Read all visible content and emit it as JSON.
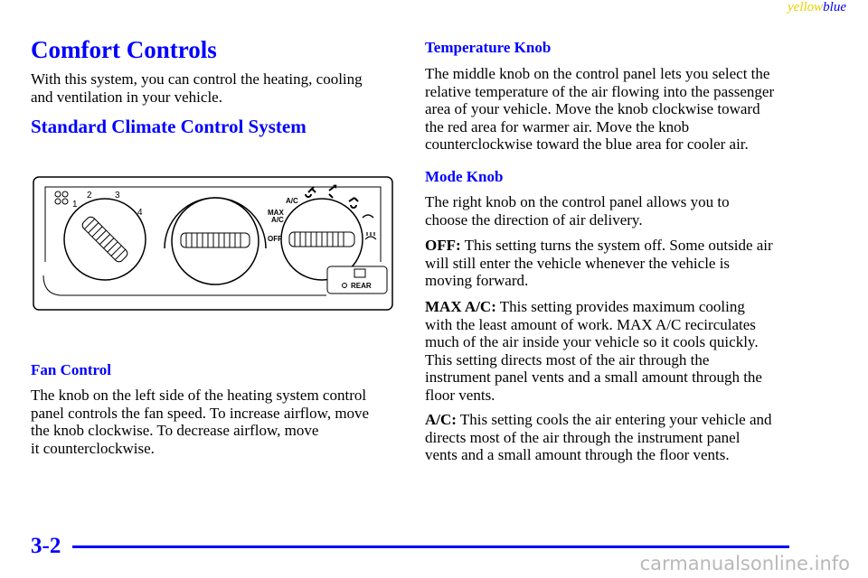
{
  "header": {
    "yellow": "yellow",
    "blue": "blue"
  },
  "left": {
    "title": "Comfort Controls",
    "intro": [
      "With this system, you can control the heating, cooling",
      "and ventilation in your vehicle."
    ],
    "subtitle": "Standard Climate Control System",
    "figure": {
      "fan_labels": [
        "1",
        "2",
        "3",
        "4"
      ],
      "ac": "A/C",
      "max": "MAX",
      "max_ac": "A/C",
      "off": "OFF",
      "rear": "REAR"
    },
    "fan_heading": "Fan Control",
    "fan_text": [
      "The knob on the left side of the heating system control",
      "panel controls the fan speed. To increase airflow, move",
      "the knob clockwise. To decrease airflow, move",
      "it counterclockwise."
    ]
  },
  "right": {
    "temp_heading": "Temperature Knob",
    "temp_text": [
      "The middle knob on the control panel lets you select the",
      "relative temperature of the air flowing into the passenger",
      "area of your vehicle. Move the knob clockwise toward",
      "the red area for warmer air. Move the knob",
      "counterclockwise toward the blue area for cooler air."
    ],
    "mode_heading": "Mode Knob",
    "mode_text": [
      "The right knob on the control panel allows you to",
      "choose the direction of air delivery."
    ],
    "off": {
      "label": "OFF:",
      "lines": [
        " This setting turns the system off. Some outside air",
        "will still enter the vehicle whenever the vehicle is",
        "moving forward."
      ]
    },
    "max_ac": {
      "label": "MAX A/C:",
      "lines": [
        " This setting provides maximum cooling",
        "with the least amount of work. MAX A/C recirculates",
        "much of the air inside your vehicle so it cools quickly.",
        "This setting directs most of the air through the",
        "instrument panel vents and a small amount through the",
        "floor vents."
      ]
    },
    "ac": {
      "label": "A/C:",
      "lines": [
        " This setting cools the air entering your vehicle and",
        "directs most of the air through the instrument panel",
        "vents and a small amount through the floor vents."
      ]
    }
  },
  "footer": {
    "page": "3-2",
    "watermark": "carmanualsonline.info"
  }
}
